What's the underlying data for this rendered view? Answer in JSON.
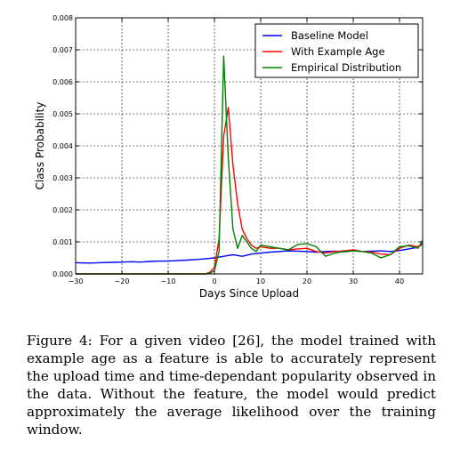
{
  "chart_data": {
    "type": "line",
    "xlabel": "Days Since Upload",
    "ylabel": "Class Probability",
    "xlim": [
      -30,
      45
    ],
    "ylim": [
      0,
      0.008
    ],
    "grid": true,
    "legend_position": "top-right",
    "x_ticks": [
      -30,
      -20,
      -10,
      0,
      10,
      20,
      30,
      40
    ],
    "x_tick_labels": [
      "−30",
      "−20",
      "−10",
      "0",
      "10",
      "20",
      "30",
      "40"
    ],
    "y_ticks": [
      0,
      0.001,
      0.002,
      0.003,
      0.004,
      0.005,
      0.006,
      0.007,
      0.008
    ],
    "y_tick_labels": [
      "0.000",
      "0.001",
      "0.002",
      "0.003",
      "0.004",
      "0.005",
      "0.006",
      "0.007",
      "0.008"
    ],
    "series": [
      {
        "name": "Baseline Model",
        "color": "#0000ff",
        "x": [
          -30,
          -27,
          -25,
          -22,
          -20,
          -18,
          -16,
          -14,
          -12,
          -10,
          -8,
          -6,
          -4,
          -2,
          0,
          2,
          4,
          6,
          8,
          10,
          12,
          14,
          16,
          18,
          20,
          22,
          24,
          26,
          28,
          30,
          32,
          34,
          36,
          38,
          40,
          42,
          44,
          45
        ],
        "values": [
          0.00035,
          0.00034,
          0.00035,
          0.00036,
          0.00037,
          0.00038,
          0.00037,
          0.00039,
          0.0004,
          0.0004,
          0.00042,
          0.00043,
          0.00045,
          0.00047,
          0.0005,
          0.00055,
          0.0006,
          0.00055,
          0.00062,
          0.00065,
          0.00068,
          0.0007,
          0.00072,
          0.00071,
          0.0007,
          0.00068,
          0.0007,
          0.00071,
          0.00069,
          0.00072,
          0.0007,
          0.00071,
          0.00072,
          0.0007,
          0.00073,
          0.00078,
          0.00083,
          0.00095
        ]
      },
      {
        "name": "With Example Age",
        "color": "#ff0000",
        "x": [
          -30,
          -2,
          -1,
          0,
          1,
          2,
          3,
          4,
          5,
          6,
          7,
          8,
          9,
          10,
          12,
          14,
          16,
          18,
          20,
          22,
          24,
          26,
          28,
          30,
          32,
          34,
          36,
          38,
          40,
          42,
          44,
          45
        ],
        "values": [
          0,
          0,
          5e-05,
          0.0002,
          0.0011,
          0.0043,
          0.0052,
          0.0034,
          0.0022,
          0.0014,
          0.0011,
          0.0009,
          0.0008,
          0.00085,
          0.0008,
          0.0008,
          0.00075,
          0.00078,
          0.0008,
          0.0007,
          0.00065,
          0.0007,
          0.00072,
          0.00075,
          0.0007,
          0.00068,
          0.00062,
          0.0006,
          0.0008,
          0.0009,
          0.00085,
          0.00092
        ]
      },
      {
        "name": "Empirical Distribution",
        "color": "#008000",
        "x": [
          -30,
          -2,
          -1,
          0,
          1,
          2,
          3,
          4,
          5,
          6,
          7,
          8,
          9,
          10,
          12,
          14,
          16,
          18,
          20,
          22,
          24,
          26,
          28,
          30,
          32,
          34,
          36,
          38,
          40,
          42,
          44,
          45
        ],
        "values": [
          0,
          0,
          2e-05,
          0.0001,
          0.0007,
          0.0068,
          0.0036,
          0.0014,
          0.0008,
          0.0012,
          0.001,
          0.0008,
          0.0007,
          0.0009,
          0.00085,
          0.0008,
          0.00075,
          0.00092,
          0.00095,
          0.00085,
          0.00055,
          0.00065,
          0.0007,
          0.00072,
          0.0007,
          0.00065,
          0.0005,
          0.0006,
          0.00085,
          0.00088,
          0.0008,
          0.00105
        ]
      }
    ]
  },
  "caption": "Figure 4: For a given video [26], the model trained with example age as a feature is able to accurately represent the upload time and time-dependant popularity observed in the data. Without the feature, the model would predict approximately the average likelihood over the training window."
}
